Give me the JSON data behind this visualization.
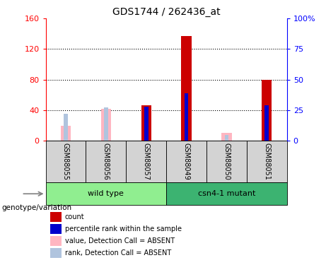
{
  "title": "GDS1744 / 262436_at",
  "samples": [
    "GSM88055",
    "GSM88056",
    "GSM88057",
    "GSM88049",
    "GSM88050",
    "GSM88051"
  ],
  "group_labels": [
    "wild type",
    "csn4-1 mutant"
  ],
  "count_values": [
    0,
    0,
    46,
    137,
    0,
    80
  ],
  "rank_values": [
    0,
    0,
    28,
    39,
    0,
    29
  ],
  "absent_count_values": [
    20,
    42,
    0,
    0,
    10,
    0
  ],
  "absent_rank_values": [
    22,
    27,
    0,
    0,
    5,
    0
  ],
  "ylim_left": [
    0,
    160
  ],
  "ylim_right": [
    0,
    100
  ],
  "yticks_left": [
    0,
    40,
    80,
    120,
    160
  ],
  "yticks_right": [
    0,
    25,
    50,
    75,
    100
  ],
  "yticklabels_right": [
    "0",
    "25",
    "50",
    "75",
    "100%"
  ],
  "colors": {
    "count": "#CC0000",
    "rank": "#0000CC",
    "absent_count": "#FFB6C1",
    "absent_rank": "#B0C4DE",
    "sample_box": "#D3D3D3",
    "group_wt": "#90EE90",
    "group_mut": "#3CB371"
  },
  "legend_items": [
    {
      "label": "count",
      "color": "#CC0000"
    },
    {
      "label": "percentile rank within the sample",
      "color": "#0000CC"
    },
    {
      "label": "value, Detection Call = ABSENT",
      "color": "#FFB6C1"
    },
    {
      "label": "rank, Detection Call = ABSENT",
      "color": "#B0C4DE"
    }
  ],
  "genotype_label": "genotype/variation"
}
